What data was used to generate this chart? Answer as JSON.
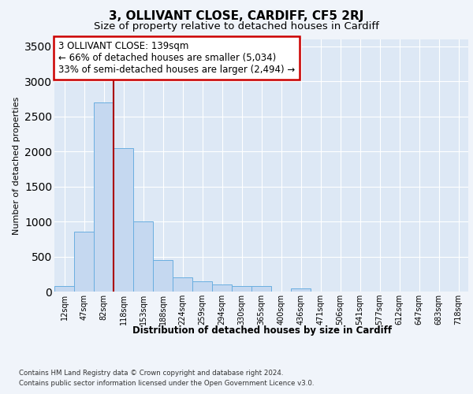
{
  "title1": "3, OLLIVANT CLOSE, CARDIFF, CF5 2RJ",
  "title2": "Size of property relative to detached houses in Cardiff",
  "xlabel": "Distribution of detached houses by size in Cardiff",
  "ylabel": "Number of detached properties",
  "footnote1": "Contains HM Land Registry data © Crown copyright and database right 2024.",
  "footnote2": "Contains public sector information licensed under the Open Government Licence v3.0.",
  "annotation_line1": "3 OLLIVANT CLOSE: 139sqm",
  "annotation_line2": "← 66% of detached houses are smaller (5,034)",
  "annotation_line3": "33% of semi-detached houses are larger (2,494) →",
  "bar_color": "#c5d8f0",
  "bar_edge_color": "#6aaee0",
  "vline_color": "#aa0000",
  "vline_x_index": 2.5,
  "categories": [
    "12sqm",
    "47sqm",
    "82sqm",
    "118sqm",
    "153sqm",
    "188sqm",
    "224sqm",
    "259sqm",
    "294sqm",
    "330sqm",
    "365sqm",
    "400sqm",
    "436sqm",
    "471sqm",
    "506sqm",
    "541sqm",
    "577sqm",
    "612sqm",
    "647sqm",
    "683sqm",
    "718sqm"
  ],
  "values": [
    75,
    850,
    2700,
    2050,
    1000,
    450,
    200,
    150,
    100,
    75,
    75,
    0,
    50,
    0,
    0,
    0,
    0,
    0,
    0,
    0,
    0
  ],
  "ylim": [
    0,
    3600
  ],
  "yticks": [
    0,
    500,
    1000,
    1500,
    2000,
    2500,
    3000,
    3500
  ],
  "background_color": "#f0f4fa",
  "plot_bg_color": "#dde8f5",
  "grid_color": "#ffffff",
  "title1_fontsize": 11,
  "title2_fontsize": 9.5,
  "annotation_fontsize": 8.5,
  "box_color": "#cc0000"
}
